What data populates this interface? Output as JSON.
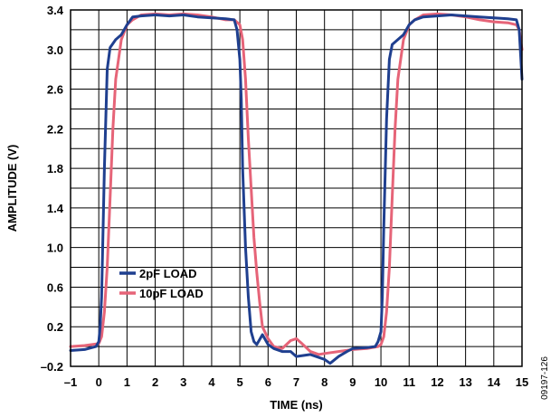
{
  "chart_data": {
    "type": "line",
    "xlabel": "TIME (ns)",
    "ylabel": "AMPLITUDE (V)",
    "xlim": [
      -1,
      15
    ],
    "ylim": [
      -0.2,
      3.4
    ],
    "x_ticks": [
      "–1",
      "0",
      "1",
      "2",
      "3",
      "4",
      "5",
      "6",
      "7",
      "8",
      "9",
      "10",
      "11",
      "12",
      "13",
      "14",
      "15"
    ],
    "y_ticks": [
      "3.4",
      "3.0",
      "2.6",
      "2.2",
      "1.8",
      "1.4",
      "1.0",
      "0.6",
      "0.2",
      "–0.2"
    ],
    "y_tick_values": [
      3.4,
      3.0,
      2.6,
      2.2,
      1.8,
      1.4,
      1.0,
      0.6,
      0.2,
      -0.2
    ],
    "y_grid_values": [
      3.4,
      3.2,
      3.0,
      2.8,
      2.6,
      2.4,
      2.2,
      2.0,
      1.8,
      1.6,
      1.4,
      1.2,
      1.0,
      0.8,
      0.6,
      0.4,
      0.2,
      0.0,
      -0.2
    ],
    "grid": true,
    "legend_position": "lower-left",
    "series": [
      {
        "name": "2pF LOAD",
        "color": "#1f3f8f",
        "x": [
          -1.0,
          -0.5,
          -0.1,
          0.0,
          0.05,
          0.1,
          0.2,
          0.3,
          0.4,
          0.6,
          0.8,
          1.0,
          1.2,
          1.5,
          2.0,
          2.5,
          3.0,
          3.5,
          4.0,
          4.5,
          4.8,
          4.9,
          5.0,
          5.05,
          5.1,
          5.2,
          5.3,
          5.4,
          5.5,
          5.6,
          5.7,
          5.8,
          6.0,
          6.2,
          6.5,
          6.8,
          7.0,
          7.5,
          8.0,
          8.2,
          8.5,
          8.8,
          9.0,
          9.5,
          9.8,
          9.9,
          10.0,
          10.05,
          10.1,
          10.2,
          10.3,
          10.4,
          10.6,
          10.8,
          11.0,
          11.2,
          11.5,
          12.0,
          12.5,
          13.0,
          13.5,
          14.0,
          14.5,
          14.8,
          14.9,
          15.0
        ],
        "y": [
          -0.04,
          -0.03,
          0.0,
          0.05,
          0.2,
          0.5,
          1.8,
          2.8,
          3.02,
          3.1,
          3.15,
          3.25,
          3.33,
          3.34,
          3.35,
          3.34,
          3.35,
          3.33,
          3.32,
          3.31,
          3.3,
          3.2,
          2.9,
          2.5,
          1.8,
          1.0,
          0.5,
          0.15,
          0.05,
          0.02,
          0.07,
          0.12,
          0.02,
          -0.02,
          -0.05,
          -0.05,
          -0.1,
          -0.08,
          -0.13,
          -0.17,
          -0.1,
          -0.05,
          -0.02,
          -0.01,
          0.0,
          0.05,
          0.15,
          0.5,
          1.2,
          2.3,
          2.9,
          3.05,
          3.1,
          3.15,
          3.25,
          3.3,
          3.33,
          3.34,
          3.35,
          3.34,
          3.33,
          3.32,
          3.31,
          3.3,
          3.2,
          2.7
        ]
      },
      {
        "name": "10pF LOAD",
        "color": "#e66478",
        "x": [
          -1.0,
          -0.5,
          0.0,
          0.1,
          0.2,
          0.3,
          0.4,
          0.5,
          0.6,
          0.8,
          1.0,
          1.2,
          1.5,
          2.0,
          2.5,
          3.0,
          3.5,
          4.0,
          4.5,
          4.8,
          5.0,
          5.1,
          5.2,
          5.3,
          5.4,
          5.5,
          5.6,
          5.7,
          5.8,
          6.0,
          6.2,
          6.5,
          6.8,
          7.0,
          7.2,
          7.5,
          7.8,
          8.0,
          8.5,
          9.0,
          9.5,
          9.9,
          10.0,
          10.1,
          10.2,
          10.3,
          10.4,
          10.5,
          10.6,
          10.8,
          11.0,
          11.2,
          11.5,
          12.0,
          12.5,
          13.0,
          13.5,
          14.0,
          14.5,
          14.8,
          14.9,
          15.0
        ],
        "y": [
          0.0,
          0.01,
          0.03,
          0.1,
          0.35,
          0.8,
          1.5,
          2.2,
          2.7,
          3.1,
          3.25,
          3.3,
          3.35,
          3.36,
          3.35,
          3.36,
          3.35,
          3.33,
          3.3,
          3.3,
          3.25,
          3.1,
          2.7,
          2.1,
          1.6,
          1.1,
          0.75,
          0.45,
          0.2,
          0.08,
          0.0,
          -0.02,
          0.06,
          0.08,
          0.03,
          -0.05,
          -0.08,
          -0.07,
          -0.05,
          -0.03,
          -0.02,
          0.0,
          0.02,
          0.1,
          0.35,
          0.8,
          1.5,
          2.2,
          2.7,
          3.1,
          3.25,
          3.3,
          3.35,
          3.36,
          3.35,
          3.33,
          3.3,
          3.28,
          3.27,
          3.25,
          3.2,
          3.0
        ]
      }
    ]
  },
  "figure_id": "09197-126"
}
